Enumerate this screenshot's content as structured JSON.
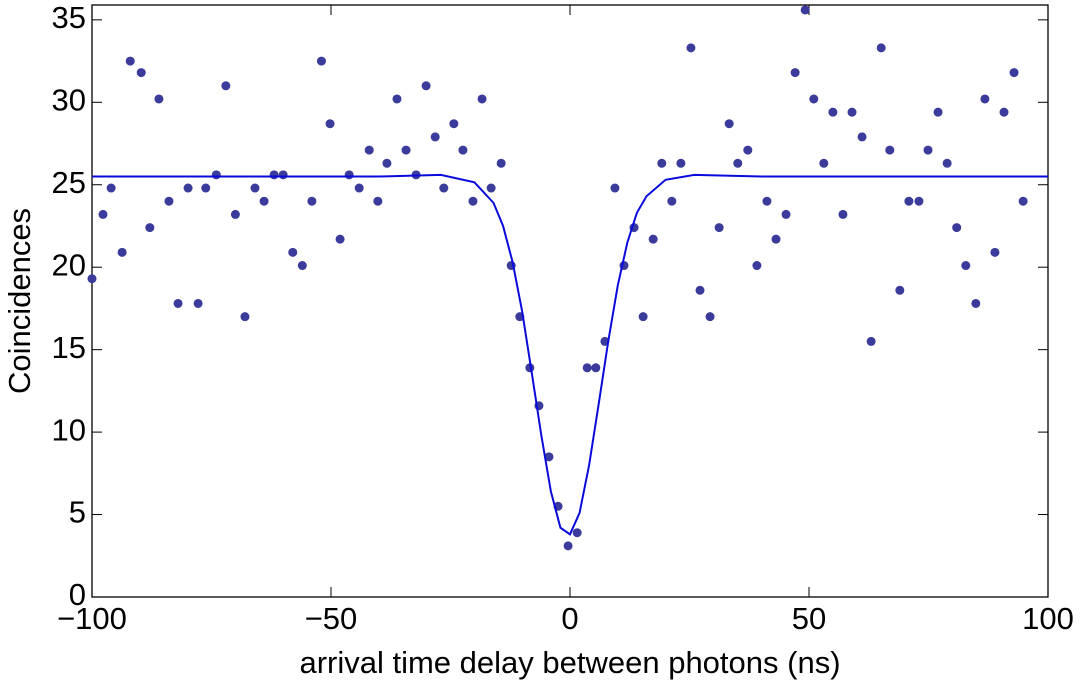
{
  "chart_data": {
    "type": "scatter",
    "xlabel": "arrival time delay between photons (ns)",
    "ylabel": "Coincidences",
    "xlim": [
      -100,
      100
    ],
    "ylim": [
      0,
      35.9
    ],
    "xticks": [
      {
        "value": -100,
        "label": "−100"
      },
      {
        "value": -50,
        "label": "−50"
      },
      0,
      50,
      100
    ],
    "yticks": [
      0,
      5,
      10,
      15,
      20,
      25,
      30,
      35
    ],
    "series": [
      {
        "type": "scatter",
        "color": "#3b3b9c",
        "x": [
          -100,
          -97.7,
          -96,
          -93.7,
          -92,
          -89.7,
          -87.9,
          -86,
          -83.9,
          -82,
          -79.9,
          -77.8,
          -76.2,
          -74,
          -72,
          -70,
          -68,
          -65.9,
          -64,
          -61.9,
          -60,
          -58,
          -56,
          -54,
          -52,
          -50.2,
          -48.1,
          -46.2,
          -44.1,
          -42,
          -40.2,
          -38.3,
          -36.2,
          -34.3,
          -32.2,
          -30.1,
          -28.2,
          -26.4,
          -24.3,
          -22.4,
          -20.3,
          -18.4,
          -16.5,
          -14.4,
          -12.3,
          -10.5,
          -8.4,
          -6.5,
          -4.4,
          -2.5,
          -0.4,
          1.5,
          3.6,
          5.4,
          7.3,
          9.4,
          11.3,
          13.4,
          15.3,
          17.4,
          19.2,
          21.3,
          23.2,
          25.3,
          27.2,
          29.3,
          31.2,
          33.3,
          35.1,
          37.2,
          39.1,
          41.2,
          43.1,
          45.2,
          47.1,
          49.2,
          51,
          53.1,
          55,
          57.1,
          59,
          61.1,
          63,
          65.1,
          66.9,
          69,
          70.9,
          73,
          74.9,
          77,
          78.9,
          80.9,
          82.8,
          84.9,
          86.8,
          88.9,
          90.8,
          92.9,
          94.8
        ],
        "values": [
          19.3,
          23.2,
          24.8,
          20.9,
          32.5,
          31.8,
          22.4,
          30.2,
          24,
          17.8,
          24.8,
          17.8,
          24.8,
          25.6,
          31,
          23.2,
          17,
          24.8,
          24,
          25.6,
          25.6,
          20.9,
          20.1,
          24,
          32.5,
          28.7,
          21.7,
          25.6,
          24.8,
          27.1,
          24,
          26.3,
          30.2,
          27.1,
          25.6,
          31,
          27.9,
          24.8,
          28.7,
          27.1,
          24,
          30.2,
          24.8,
          26.3,
          20.1,
          17,
          13.9,
          11.6,
          8.5,
          5.5,
          3.1,
          3.9,
          13.9,
          13.9,
          15.5,
          24.8,
          20.1,
          22.4,
          17,
          21.7,
          26.3,
          24,
          26.3,
          33.3,
          18.6,
          17,
          22.4,
          28.7,
          26.3,
          27.1,
          20.1,
          24,
          21.7,
          23.2,
          31.8,
          35.6,
          30.2,
          26.3,
          29.4,
          23.2,
          29.4,
          27.9,
          15.5,
          33.3,
          27.1,
          18.6,
          24,
          24,
          27.1,
          29.4,
          26.3,
          22.4,
          20.1,
          17.8,
          30.2,
          20.9,
          29.4,
          31.8,
          24
        ]
      },
      {
        "type": "line",
        "color": "#0a0adc",
        "x": [
          -100,
          -40,
          -27,
          -20,
          -16,
          -14,
          -12,
          -10,
          -8,
          -6,
          -4,
          -2,
          0,
          2,
          4,
          6,
          8,
          10,
          12,
          14,
          16,
          20,
          26,
          40,
          100
        ],
        "values": [
          25.5,
          25.5,
          25.6,
          25.15,
          23.9,
          22.5,
          20.3,
          17.3,
          13.6,
          9.8,
          6.4,
          4.2,
          3.8,
          5.1,
          8.0,
          11.7,
          15.5,
          18.9,
          21.5,
          23.3,
          24.3,
          25.3,
          25.6,
          25.5,
          25.5
        ]
      }
    ]
  }
}
